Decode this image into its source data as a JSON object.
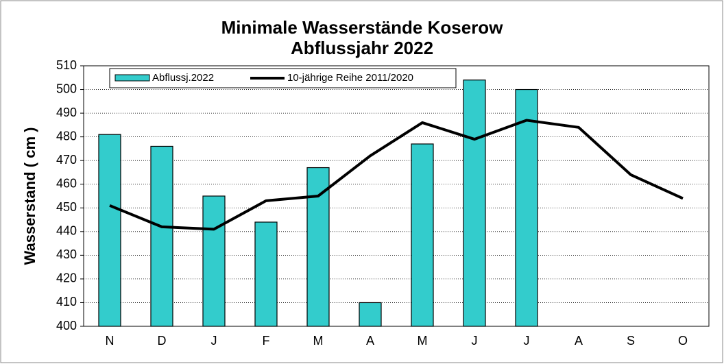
{
  "chart_data": {
    "type": "bar-line",
    "title": [
      "Minimale Wasserstände Koserow",
      "Abflussjahr 2022"
    ],
    "ylabel": "Wasserstand  ( cm )",
    "categories": [
      "N",
      "D",
      "J",
      "F",
      "M",
      "A",
      "M",
      "J",
      "J",
      "A",
      "S",
      "O"
    ],
    "series": [
      {
        "name": "Abflussj.2022",
        "type": "bar",
        "color": "#33cccc",
        "values": [
          481,
          476,
          455,
          444,
          467,
          410,
          477,
          504,
          500,
          null,
          null,
          null
        ]
      },
      {
        "name": "10-jährige Reihe  2011/2020",
        "type": "line",
        "color": "#000000",
        "values": [
          451,
          442,
          441,
          453,
          455,
          472,
          486,
          479,
          487,
          484,
          464,
          454
        ]
      }
    ],
    "ylim": [
      400,
      510
    ],
    "yticks": [
      400,
      410,
      420,
      430,
      440,
      450,
      460,
      470,
      480,
      490,
      500,
      510
    ],
    "grid": true,
    "legend": "top-left"
  }
}
